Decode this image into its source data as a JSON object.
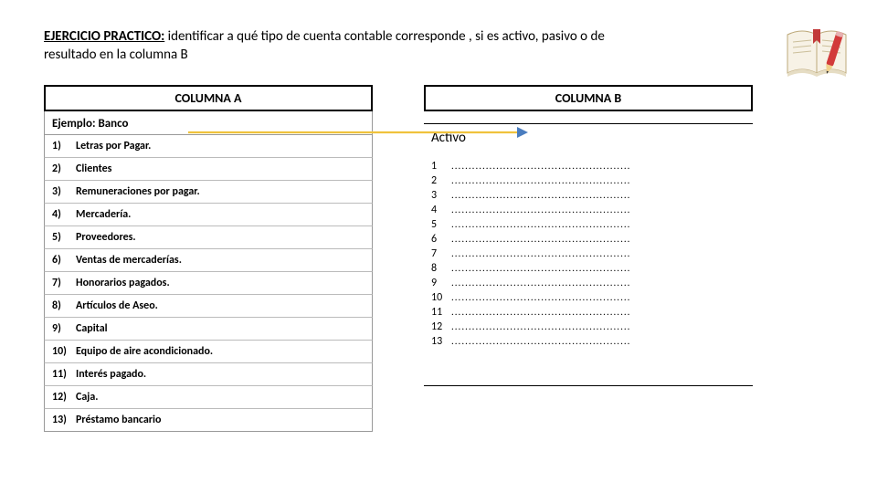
{
  "heading": {
    "title": "EJERCICIO PRACTICO:",
    "rest1": " identificar a qué tipo de cuenta contable corresponde , si es activo, pasivo o de",
    "rest2": "resultado en  la columna B"
  },
  "columnA": {
    "header": "COLUMNA A",
    "example": "Ejemplo: Banco",
    "items": [
      {
        "n": "1)",
        "label": "Letras por Pagar."
      },
      {
        "n": "2)",
        "label": "Clientes"
      },
      {
        "n": "3)",
        "label": "Remuneraciones por pagar."
      },
      {
        "n": "4)",
        "label": "Mercadería."
      },
      {
        "n": "5)",
        "label": "Proveedores."
      },
      {
        "n": "6)",
        "label": "Ventas de mercaderías."
      },
      {
        "n": "7)",
        "label": "Honorarios pagados."
      },
      {
        "n": "8)",
        "label": "Artículos de Aseo."
      },
      {
        "n": "9)",
        "label": "Capital"
      },
      {
        "n": "10)",
        "label": "Equipo de aire acondicionado."
      },
      {
        "n": "11)",
        "label": "Interés pagado."
      },
      {
        "n": "12)",
        "label": "Caja."
      },
      {
        "n": "13)",
        "label": "Préstamo bancario"
      }
    ]
  },
  "columnB": {
    "header": "COLUMNA   B",
    "example": "Activo",
    "blanks": [
      "1",
      "2",
      "3",
      "4",
      "5",
      "6",
      "7",
      "8",
      "9",
      "10",
      "11",
      "12",
      "13"
    ],
    "dots": "...................................................."
  },
  "colors": {
    "arrow_line": "#f0c23c",
    "arrow_head": "#4a7dbf",
    "book_page": "#f7f2e6",
    "book_page_shadow": "#e6ddc4",
    "book_ribbon": "#c23a3a",
    "pencil_body": "#d23a3a",
    "pencil_tip": "#f2d08a",
    "pencil_lead": "#333333",
    "border_gray": "#999999"
  }
}
